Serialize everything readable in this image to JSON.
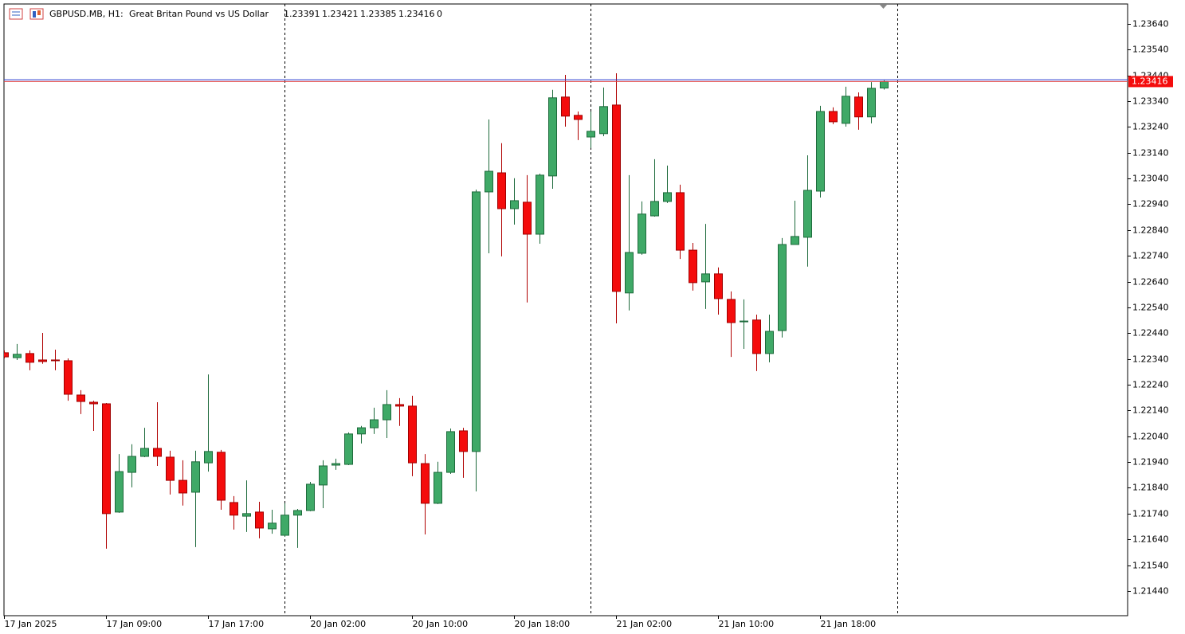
{
  "header": {
    "symbol": "GBPUSD.MB, H1:",
    "description": "Great Britan Pound vs US Dollar",
    "quote": [
      "1.23391",
      "1.23421",
      "1.23385",
      "1.23416",
      "0"
    ]
  },
  "chart_data": {
    "type": "candlestick",
    "categories": [
      "17 Jan 2025",
      null,
      null,
      null,
      null,
      null,
      null,
      null,
      "17 Jan 09:00",
      null,
      null,
      null,
      null,
      null,
      null,
      null,
      "17 Jan 17:00",
      null,
      null,
      null,
      null,
      null,
      null,
      null,
      "20 Jan 02:00",
      null,
      null,
      null,
      null,
      null,
      null,
      null,
      "20 Jan 10:00",
      null,
      null,
      null,
      null,
      null,
      null,
      null,
      "20 Jan 18:00",
      null,
      null,
      null,
      null,
      null,
      null,
      null,
      "21 Jan 02:00",
      null,
      null,
      null,
      null,
      null,
      null,
      null,
      "21 Jan 10:00",
      null,
      null,
      null,
      null,
      null,
      null,
      null,
      "21 Jan 18:00",
      null,
      null,
      null,
      null,
      null
    ],
    "open": [
      1.22364,
      1.22345,
      1.22361,
      1.22336,
      1.22336,
      1.22333,
      1.222,
      1.22172,
      1.22166,
      1.21746,
      1.219,
      1.21962,
      1.21993,
      1.21959,
      1.21869,
      1.21823,
      1.21937,
      1.21978,
      1.21783,
      1.2173,
      1.21746,
      1.21681,
      1.21656,
      1.21734,
      1.21752,
      1.21851,
      1.21928,
      1.21931,
      1.22049,
      1.22073,
      1.22104,
      1.22163,
      1.22157,
      1.21934,
      1.2178,
      1.219,
      1.22061,
      1.21981,
      1.22988,
      1.23062,
      1.22923,
      1.22948,
      1.22824,
      1.2305,
      1.23356,
      1.23285,
      1.23201,
      1.23214,
      1.23325,
      1.22596,
      1.2275,
      1.22895,
      1.22951,
      1.22985,
      1.22762,
      1.22639,
      1.2267,
      1.22571,
      1.22484,
      1.22491,
      1.22361,
      1.2245,
      1.22784,
      1.22812,
      1.22991,
      1.233,
      1.23254,
      1.23356,
      1.23279,
      1.23391
    ],
    "high": [
      1.22373,
      1.22398,
      1.22373,
      1.22441,
      1.22376,
      1.22342,
      1.22219,
      1.22178,
      1.22169,
      1.21971,
      1.22009,
      1.22073,
      1.22172,
      1.21984,
      1.21947,
      1.21984,
      1.2228,
      1.21987,
      1.21808,
      1.21869,
      1.21786,
      1.21755,
      1.2178,
      1.21758,
      1.21863,
      1.21947,
      1.21953,
      1.22055,
      1.2208,
      1.22151,
      1.22219,
      1.22188,
      1.22197,
      1.21971,
      1.21941,
      1.2207,
      1.22073,
      1.22997,
      1.23269,
      1.23177,
      1.23041,
      1.23053,
      1.23059,
      1.23384,
      1.23442,
      1.233,
      1.233,
      1.23393,
      1.23448,
      1.23053,
      1.22951,
      1.23115,
      1.2309,
      1.23016,
      1.2279,
      1.22864,
      1.22695,
      1.22602,
      1.22571,
      1.22512,
      1.22512,
      1.22809,
      1.22954,
      1.2313,
      1.23322,
      1.23316,
      1.23396,
      1.23374,
      1.23414,
      1.23421
    ],
    "low": [
      1.22342,
      1.22336,
      1.22296,
      1.22321,
      1.22296,
      1.22178,
      1.22126,
      1.22061,
      1.21604,
      1.21743,
      1.21842,
      1.21959,
      1.21925,
      1.21814,
      1.21771,
      1.2161,
      1.21903,
      1.21755,
      1.21678,
      1.21669,
      1.21644,
      1.21662,
      1.2165,
      1.21607,
      1.21749,
      1.21761,
      1.2191,
      1.21928,
      1.22012,
      1.22049,
      1.22033,
      1.2208,
      1.21885,
      1.21659,
      1.21777,
      1.21894,
      1.21879,
      1.21826,
      1.2275,
      1.22738,
      1.22861,
      1.22559,
      1.22787,
      1.23,
      1.23241,
      1.23189,
      1.23158,
      1.23204,
      1.22478,
      1.22528,
      1.22744,
      1.22892,
      1.22945,
      1.22728,
      1.22605,
      1.22534,
      1.22512,
      1.22348,
      1.22379,
      1.22293,
      1.22327,
      1.22423,
      1.22784,
      1.22698,
      1.22966,
      1.23251,
      1.23241,
      1.23229,
      1.23254,
      1.23385
    ],
    "close": [
      1.22348,
      1.22358,
      1.22327,
      1.2233,
      1.22333,
      1.22203,
      1.22175,
      1.22166,
      1.2174,
      1.21903,
      1.21962,
      1.21993,
      1.21962,
      1.21869,
      1.2182,
      1.21941,
      1.21981,
      1.21792,
      1.21734,
      1.2174,
      1.21684,
      1.21703,
      1.21734,
      1.21752,
      1.21854,
      1.21925,
      1.21934,
      1.22049,
      1.22073,
      1.22104,
      1.22163,
      1.22157,
      1.21937,
      1.2178,
      1.219,
      1.22058,
      1.21981,
      1.22988,
      1.23068,
      1.22923,
      1.22954,
      1.22824,
      1.23053,
      1.23353,
      1.23282,
      1.23269,
      1.23223,
      1.23319,
      1.22602,
      1.22753,
      1.22902,
      1.22951,
      1.22985,
      1.22762,
      1.22636,
      1.2267,
      1.22574,
      1.22481,
      1.22487,
      1.22361,
      1.22447,
      1.22784,
      1.22815,
      1.22994,
      1.233,
      1.2326,
      1.23359,
      1.23279,
      1.2339,
      1.23416
    ],
    "up_color": "#3fa967",
    "down_color": "#f40c0c",
    "bid": 1.23416,
    "ask": 1.23423,
    "ylim": [
      1.21344,
      1.23717
    ],
    "yticks": [
      {
        "value": 1.2364,
        "label": "1.23640"
      },
      {
        "value": 1.2354,
        "label": "1.23540"
      },
      {
        "value": 1.2344,
        "label": "1.23440"
      },
      {
        "value": 1.2334,
        "label": "1.23340"
      },
      {
        "value": 1.2324,
        "label": "1.23240"
      },
      {
        "value": 1.2314,
        "label": "1.23140"
      },
      {
        "value": 1.2304,
        "label": "1.23040"
      },
      {
        "value": 1.2294,
        "label": "1.22940"
      },
      {
        "value": 1.2284,
        "label": "1.22840"
      },
      {
        "value": 1.2274,
        "label": "1.22740"
      },
      {
        "value": 1.2264,
        "label": "1.22640"
      },
      {
        "value": 1.2254,
        "label": "1.22540"
      },
      {
        "value": 1.2244,
        "label": "1.22440"
      },
      {
        "value": 1.2234,
        "label": "1.22340"
      },
      {
        "value": 1.2224,
        "label": "1.22240"
      },
      {
        "value": 1.2214,
        "label": "1.22140"
      },
      {
        "value": 1.2204,
        "label": "1.22040"
      },
      {
        "value": 1.2194,
        "label": "1.21940"
      },
      {
        "value": 1.2184,
        "label": "1.21840"
      },
      {
        "value": 1.2174,
        "label": "1.21740"
      },
      {
        "value": 1.2164,
        "label": "1.21640"
      },
      {
        "value": 1.2154,
        "label": "1.21540"
      },
      {
        "value": 1.2144,
        "label": "1.21440"
      }
    ]
  }
}
